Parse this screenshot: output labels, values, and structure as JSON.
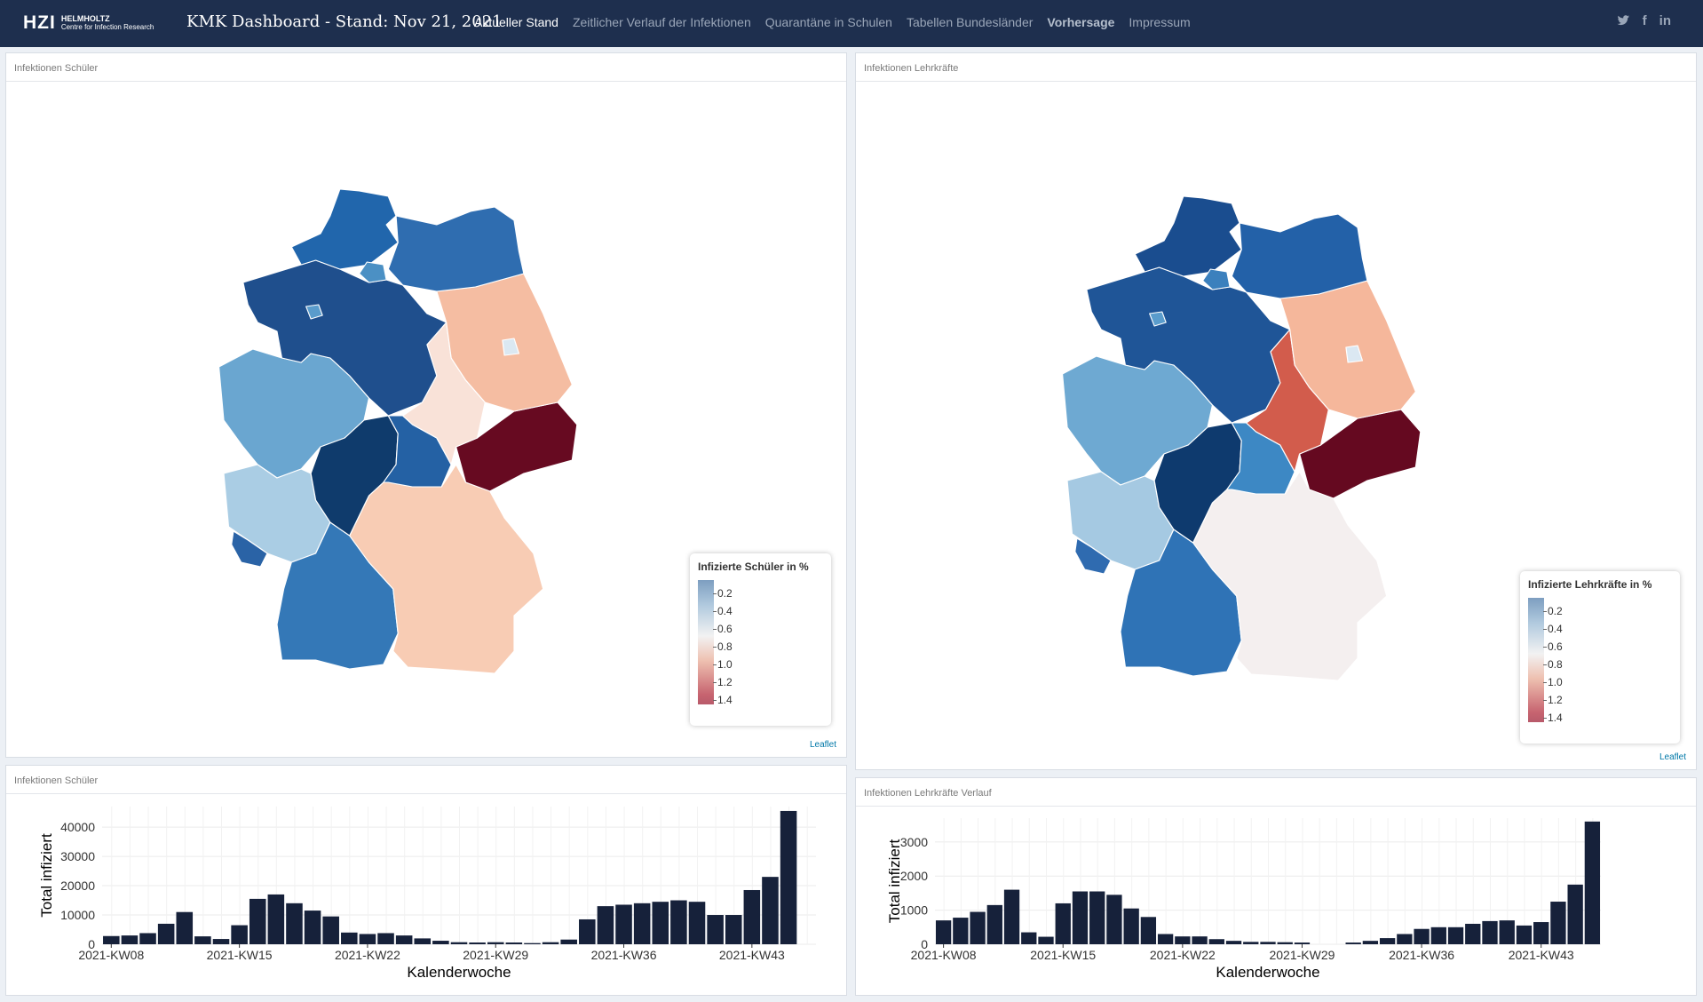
{
  "header": {
    "logo_text": "HZI",
    "logo_sub1": "HELMHOLTZ",
    "logo_sub2": "Centre for Infection Research",
    "title": "KMK Dashboard - Stand: Nov 21, 2021",
    "nav": [
      "Aktueller Stand",
      "Zeitlicher Verlauf der Infektionen",
      "Quarantäne in Schulen",
      "Tabellen Bundesländer",
      "Vorhersage",
      "Impressum"
    ],
    "social": [
      "twitter-icon",
      "facebook-icon",
      "linkedin-icon"
    ]
  },
  "map_students": {
    "title": "Infektionen Schüler",
    "legend_title": "Infizierte Schüler in %",
    "legend_ticks": [
      "0.2",
      "0.4",
      "0.6",
      "0.8",
      "1.0",
      "1.2",
      "1.4"
    ],
    "attribution": "Leaflet"
  },
  "map_teachers": {
    "title": "Infektionen Lehrkräfte",
    "legend_title": "Infizierte Lehrkräfte in %",
    "legend_ticks": [
      "0.2",
      "0.4",
      "0.6",
      "0.8",
      "1.0",
      "1.2",
      "1.4"
    ],
    "attribution": "Leaflet"
  },
  "chart_students_title": "Infektionen Schüler",
  "chart_teachers_title": "Infektionen Lehrkräfte Verlauf",
  "chart_data": [
    {
      "type": "bar",
      "title": "Infektionen Schüler",
      "xlabel": "Kalenderwoche",
      "ylabel": "Total infiziert",
      "ylim": [
        0,
        47000
      ],
      "yticks": [
        0,
        10000,
        20000,
        30000,
        40000
      ],
      "xticks": [
        "2021-KW08",
        "2021-KW15",
        "2021-KW22",
        "2021-KW29",
        "2021-KW36",
        "2021-KW43"
      ],
      "categories": [
        "KW08",
        "KW09",
        "KW10",
        "KW11",
        "KW12",
        "KW13",
        "KW14",
        "KW15",
        "KW16",
        "KW17",
        "KW18",
        "KW19",
        "KW20",
        "KW21",
        "KW22",
        "KW23",
        "KW24",
        "KW25",
        "KW26",
        "KW27",
        "KW28",
        "KW29",
        "KW30",
        "KW31",
        "KW32",
        "KW33",
        "KW34",
        "KW35",
        "KW36",
        "KW37",
        "KW38",
        "KW39",
        "KW40",
        "KW41",
        "KW42",
        "KW43",
        "KW44",
        "KW45",
        "KW46"
      ],
      "values": [
        2800,
        3000,
        3800,
        7000,
        11000,
        2700,
        1800,
        6500,
        15500,
        17000,
        14000,
        11500,
        9500,
        4000,
        3500,
        3800,
        3000,
        2000,
        1200,
        700,
        600,
        700,
        600,
        400,
        700,
        1600,
        8500,
        13000,
        13500,
        14000,
        14500,
        15000,
        14500,
        10000,
        10000,
        18500,
        23000,
        45500,
        0
      ]
    },
    {
      "type": "bar",
      "title": "Infektionen Lehrkräfte Verlauf",
      "xlabel": "Kalenderwoche",
      "ylabel": "Total infiziert",
      "ylim": [
        0,
        3700
      ],
      "yticks": [
        0,
        1000,
        2000,
        3000
      ],
      "xticks": [
        "2021-KW08",
        "2021-KW15",
        "2021-KW22",
        "2021-KW29",
        "2021-KW36",
        "2021-KW43"
      ],
      "categories": [
        "KW08",
        "KW09",
        "KW10",
        "KW11",
        "KW12",
        "KW13",
        "KW14",
        "KW15",
        "KW16",
        "KW17",
        "KW18",
        "KW19",
        "KW20",
        "KW21",
        "KW22",
        "KW23",
        "KW24",
        "KW25",
        "KW26",
        "KW27",
        "KW28",
        "KW29",
        "KW30",
        "KW31",
        "KW32",
        "KW33",
        "KW34",
        "KW35",
        "KW36",
        "KW37",
        "KW38",
        "KW39",
        "KW40",
        "KW41",
        "KW42",
        "KW43",
        "KW44",
        "KW45",
        "KW46"
      ],
      "values": [
        700,
        780,
        950,
        1150,
        1600,
        350,
        220,
        1200,
        1550,
        1550,
        1450,
        1050,
        800,
        300,
        230,
        230,
        150,
        100,
        70,
        70,
        60,
        50,
        0,
        0,
        50,
        100,
        180,
        300,
        450,
        500,
        500,
        600,
        680,
        700,
        550,
        650,
        1250,
        1750,
        3600
      ]
    }
  ],
  "map_colors": {
    "student": {
      "SH": "#2166ac",
      "MV": "#2f6db0",
      "HH": "#4b90c4",
      "HB": "#5a9ccc",
      "NI": "#1f4f8d",
      "BB": "#f5bda2",
      "BE": "#dbe8f2",
      "ST": "#f9e2d8",
      "NW": "#6aa6d0",
      "HE": "#0f3b6c",
      "TH": "#2461a4",
      "SN": "#670a21",
      "RP": "#aacde4",
      "SL": "#2a63a6",
      "BW": "#3478b7",
      "BY": "#f8ccb4"
    },
    "teacher": {
      "SH": "#1a4d8f",
      "MV": "#2361a8",
      "HH": "#3b80bd",
      "HB": "#5a9ccc",
      "NI": "#1f5597",
      "BB": "#f5b79b",
      "BE": "#dbe8f2",
      "ST": "#d25c4c",
      "NW": "#6ea9d2",
      "HE": "#0e3a6e",
      "TH": "#3d88c4",
      "SN": "#650920",
      "RP": "#a5c9e2",
      "SL": "#2f6bb0",
      "BW": "#2f73b6",
      "BY": "#f4efef"
    }
  }
}
